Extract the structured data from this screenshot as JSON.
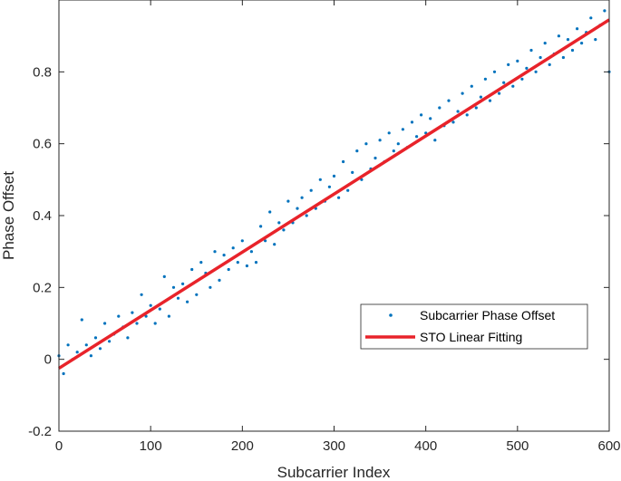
{
  "chart_data": {
    "type": "scatter",
    "xlabel": "Subcarrier Index",
    "ylabel": "Phase Offset",
    "xlim": [
      0,
      600
    ],
    "ylim": [
      -0.2,
      1.0
    ],
    "xticks": [
      "0",
      "100",
      "200",
      "300",
      "400",
      "500",
      "600"
    ],
    "yticks": [
      "-0.2",
      "0",
      "0.2",
      "0.4",
      "0.6",
      "0.8"
    ],
    "legend_position": "lower-right",
    "series": [
      {
        "name": "Subcarrier Phase Offset",
        "kind": "scatter",
        "color": "#0072BD",
        "x": [
          0,
          5,
          10,
          15,
          20,
          25,
          30,
          35,
          40,
          45,
          50,
          55,
          60,
          65,
          70,
          75,
          80,
          85,
          90,
          95,
          100,
          105,
          110,
          115,
          120,
          125,
          130,
          135,
          140,
          145,
          150,
          155,
          160,
          165,
          170,
          175,
          180,
          185,
          190,
          195,
          200,
          205,
          210,
          215,
          220,
          225,
          230,
          235,
          240,
          245,
          250,
          255,
          260,
          265,
          270,
          275,
          280,
          285,
          290,
          295,
          300,
          305,
          310,
          315,
          320,
          325,
          330,
          335,
          340,
          345,
          350,
          355,
          360,
          365,
          370,
          375,
          380,
          385,
          390,
          395,
          400,
          405,
          410,
          415,
          420,
          425,
          430,
          435,
          440,
          445,
          450,
          455,
          460,
          465,
          470,
          475,
          480,
          485,
          490,
          495,
          500,
          505,
          510,
          515,
          520,
          525,
          530,
          535,
          540,
          545,
          550,
          555,
          560,
          565,
          570,
          575,
          580,
          585,
          590,
          595,
          600
        ],
        "y": [
          0.01,
          -0.04,
          0.04,
          0.0,
          0.02,
          0.11,
          0.04,
          0.01,
          0.06,
          0.03,
          0.1,
          0.05,
          0.07,
          0.12,
          0.09,
          0.06,
          0.13,
          0.1,
          0.18,
          0.12,
          0.15,
          0.1,
          0.14,
          0.23,
          0.12,
          0.2,
          0.17,
          0.21,
          0.16,
          0.25,
          0.18,
          0.27,
          0.24,
          0.2,
          0.3,
          0.22,
          0.29,
          0.25,
          0.31,
          0.27,
          0.33,
          0.26,
          0.3,
          0.27,
          0.37,
          0.33,
          0.41,
          0.32,
          0.38,
          0.36,
          0.44,
          0.38,
          0.42,
          0.45,
          0.4,
          0.47,
          0.42,
          0.5,
          0.44,
          0.48,
          0.51,
          0.45,
          0.55,
          0.47,
          0.52,
          0.58,
          0.5,
          0.6,
          0.53,
          0.56,
          0.61,
          0.55,
          0.63,
          0.58,
          0.6,
          0.64,
          0.59,
          0.66,
          0.62,
          0.68,
          0.63,
          0.67,
          0.61,
          0.7,
          0.65,
          0.72,
          0.66,
          0.69,
          0.74,
          0.68,
          0.76,
          0.7,
          0.73,
          0.78,
          0.72,
          0.8,
          0.74,
          0.77,
          0.82,
          0.76,
          0.83,
          0.78,
          0.81,
          0.86,
          0.8,
          0.84,
          0.88,
          0.82,
          0.85,
          0.9,
          0.84,
          0.89,
          0.86,
          0.92,
          0.88,
          0.91,
          0.95,
          0.89,
          0.93,
          0.97,
          0.8
        ]
      },
      {
        "name": "STO Linear Fitting",
        "kind": "line",
        "color": "#E8232A",
        "x": [
          0,
          600
        ],
        "y": [
          -0.025,
          0.945
        ]
      }
    ]
  }
}
